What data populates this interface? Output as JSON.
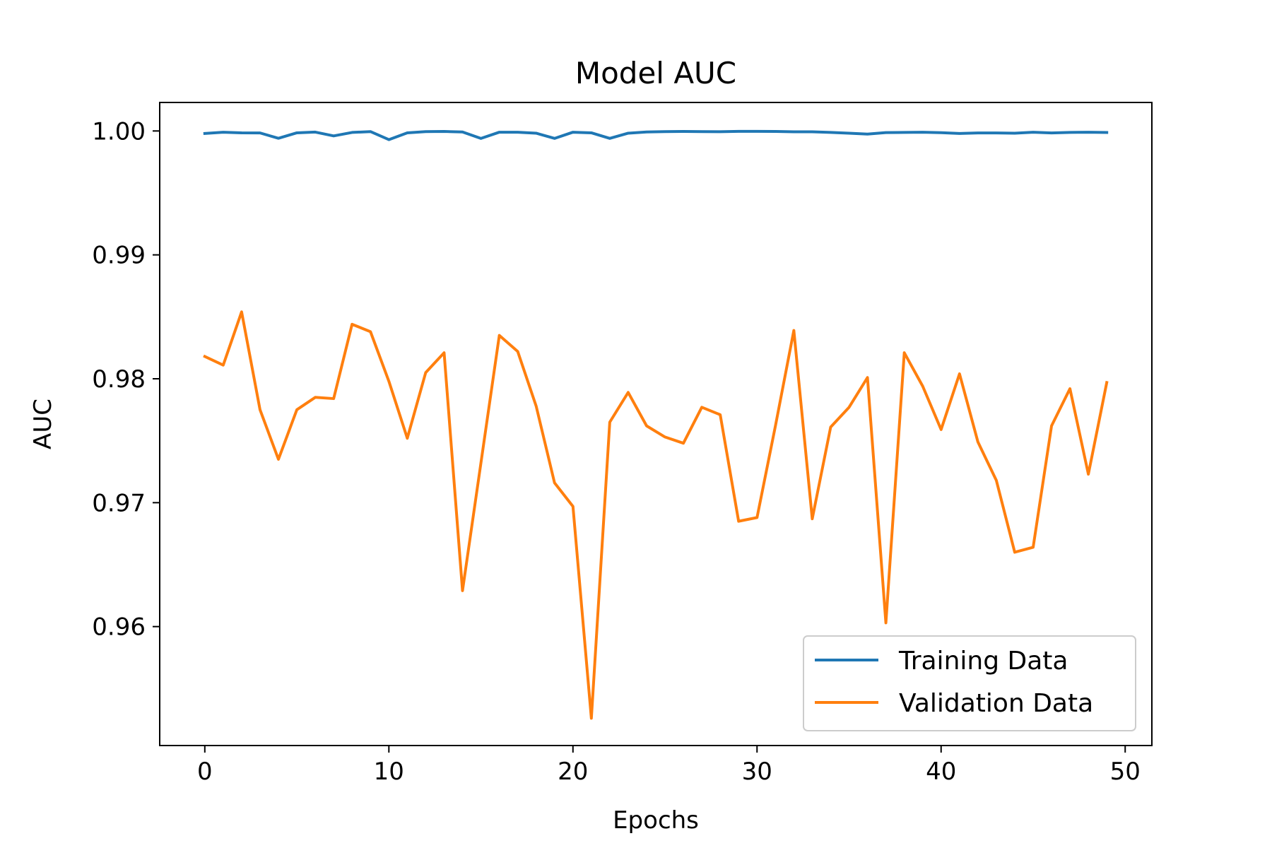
{
  "chart_data": {
    "type": "line",
    "title": "Model AUC",
    "xlabel": "Epochs",
    "ylabel": "AUC",
    "xlim": [
      -2.45,
      51.45
    ],
    "ylim": [
      0.9504,
      1.0023
    ],
    "x_ticks": [
      0,
      10,
      20,
      30,
      40,
      50
    ],
    "x_tick_labels": [
      "0",
      "10",
      "20",
      "30",
      "40",
      "50"
    ],
    "y_ticks": [
      0.96,
      0.97,
      0.98,
      0.99,
      1.0
    ],
    "y_tick_labels": [
      "0.96",
      "0.97",
      "0.98",
      "0.99",
      "1.00"
    ],
    "grid": false,
    "legend_placement": "lower-right",
    "x": [
      0,
      1,
      2,
      3,
      4,
      5,
      6,
      7,
      8,
      9,
      10,
      11,
      12,
      13,
      14,
      15,
      16,
      17,
      18,
      19,
      20,
      21,
      22,
      23,
      24,
      25,
      26,
      27,
      28,
      29,
      30,
      31,
      32,
      33,
      34,
      35,
      36,
      37,
      38,
      39,
      40,
      41,
      42,
      43,
      44,
      45,
      46,
      47,
      48,
      49
    ],
    "series": [
      {
        "name": "Training Data",
        "color": "#1f77b4",
        "values": [
          0.9998,
          0.9999,
          0.99985,
          0.99984,
          0.99941,
          0.99985,
          0.99991,
          0.9996,
          0.99988,
          0.99995,
          0.9993,
          0.99985,
          0.99995,
          0.99996,
          0.99992,
          0.9994,
          0.9999,
          0.9999,
          0.99982,
          0.9994,
          0.9999,
          0.99985,
          0.9994,
          0.99982,
          0.99992,
          0.99995,
          0.99996,
          0.99995,
          0.99994,
          0.99997,
          0.99997,
          0.99996,
          0.99993,
          0.99993,
          0.99988,
          0.99982,
          0.99975,
          0.99987,
          0.99988,
          0.9999,
          0.99986,
          0.9998,
          0.99984,
          0.99984,
          0.99982,
          0.9999,
          0.99984,
          0.99988,
          0.9999,
          0.99988
        ]
      },
      {
        "name": "Validation Data",
        "color": "#ff7f0e",
        "values": [
          0.9818,
          0.9811,
          0.9854,
          0.9775,
          0.9735,
          0.9775,
          0.9785,
          0.9784,
          0.9844,
          0.9838,
          0.9798,
          0.9752,
          0.9805,
          0.9821,
          0.9629,
          0.9732,
          0.9835,
          0.9822,
          0.9778,
          0.9716,
          0.9697,
          0.9526,
          0.9765,
          0.9789,
          0.9762,
          0.9753,
          0.9748,
          0.9777,
          0.9771,
          0.9685,
          0.9688,
          0.9762,
          0.9839,
          0.9687,
          0.9761,
          0.9777,
          0.9801,
          0.9603,
          0.9821,
          0.9794,
          0.9759,
          0.9804,
          0.9749,
          0.9718,
          0.966,
          0.9664,
          0.9762,
          0.9792,
          0.9723,
          0.9797
        ]
      }
    ]
  }
}
